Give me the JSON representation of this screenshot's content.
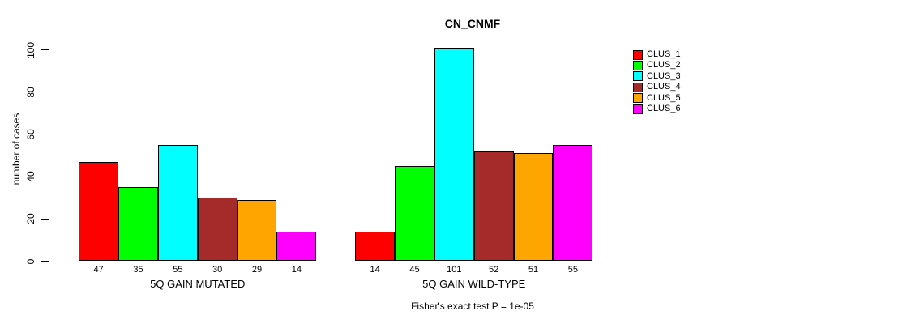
{
  "title": "CN_CNMF",
  "chart_data": {
    "type": "bar",
    "title": "CN_CNMF",
    "ylabel": "number of cases",
    "xlabel": "",
    "ylim": [
      0,
      100
    ],
    "yticks": [
      0,
      20,
      40,
      60,
      80,
      100
    ],
    "grid": false,
    "legend_position": "right",
    "show_bar_values": true,
    "categories": [
      "5Q GAIN MUTATED",
      "5Q GAIN WILD-TYPE"
    ],
    "series": [
      {
        "name": "CLUS_1",
        "color": "#FF0000",
        "values": [
          47,
          14
        ]
      },
      {
        "name": "CLUS_2",
        "color": "#00FF00",
        "values": [
          35,
          45
        ]
      },
      {
        "name": "CLUS_3",
        "color": "#00FFFF",
        "values": [
          55,
          101
        ]
      },
      {
        "name": "CLUS_4",
        "color": "#A52A2A",
        "values": [
          30,
          52
        ]
      },
      {
        "name": "CLUS_5",
        "color": "#FFA500",
        "values": [
          29,
          51
        ]
      },
      {
        "name": "CLUS_6",
        "color": "#FF00FF",
        "values": [
          14,
          55
        ]
      }
    ],
    "annotation": "Fisher's exact test P = 1e-05"
  },
  "colors": {
    "axis": "#000000",
    "background": "#FFFFFF",
    "text": "#000000"
  }
}
